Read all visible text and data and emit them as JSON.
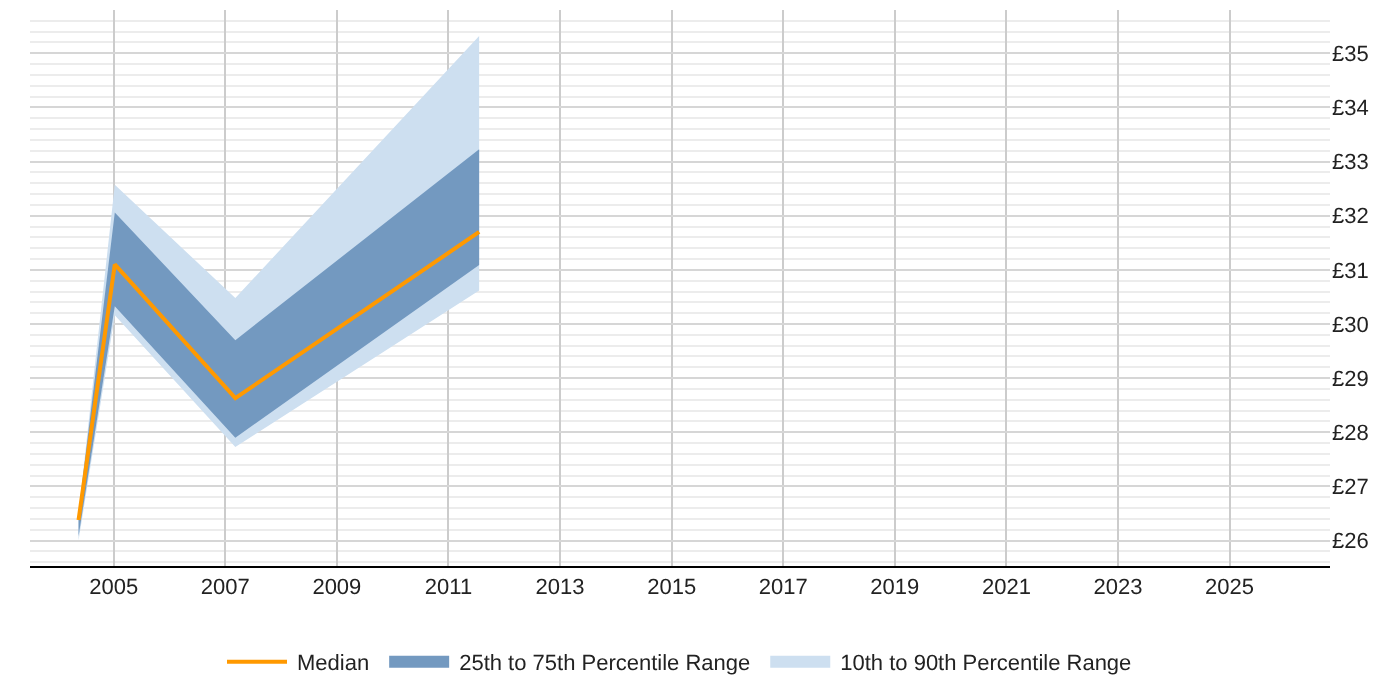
{
  "chart_data": {
    "type": "line",
    "x": [
      2004.37,
      2005.02,
      2007.18,
      2011.55
    ],
    "series": [
      {
        "name": "10th to 90th Percentile Range",
        "type": "area",
        "color": "#cddff0",
        "values": [
          null,
          null,
          null,
          null
        ],
        "lower": [
          26.0,
          30.16,
          27.73,
          30.62
        ],
        "upper": [
          26.5,
          32.57,
          30.48,
          35.32
        ]
      },
      {
        "name": "25th to 75th Percentile Range",
        "type": "area",
        "color": "#7399c0",
        "values": [
          null,
          null,
          null,
          null
        ],
        "lower": [
          26.08,
          30.33,
          27.9,
          31.09
        ],
        "upper": [
          26.5,
          32.06,
          29.7,
          33.23
        ]
      },
      {
        "name": "Median",
        "color": "#ff9900",
        "values": [
          26.38,
          31.1,
          28.63,
          31.7
        ]
      }
    ],
    "xlim": [
      2003.5,
      2026.8
    ],
    "ylim": [
      25.53,
      35.8
    ],
    "xticks": [
      2005,
      2007,
      2009,
      2011,
      2013,
      2015,
      2017,
      2019,
      2021,
      2023,
      2025
    ],
    "yticks": [
      {
        "value": 26,
        "label": "£26"
      },
      {
        "value": 27,
        "label": "£27"
      },
      {
        "value": 28,
        "label": "£28"
      },
      {
        "value": 29,
        "label": "£29"
      },
      {
        "value": 30,
        "label": "£30"
      },
      {
        "value": 31,
        "label": "£31"
      },
      {
        "value": 32,
        "label": "£32"
      },
      {
        "value": 33,
        "label": "£33"
      },
      {
        "value": 34,
        "label": "£34"
      },
      {
        "value": 35,
        "label": "£35"
      }
    ],
    "grid": true,
    "legend": "bottom",
    "marker": "none",
    "line_style": "solid"
  }
}
